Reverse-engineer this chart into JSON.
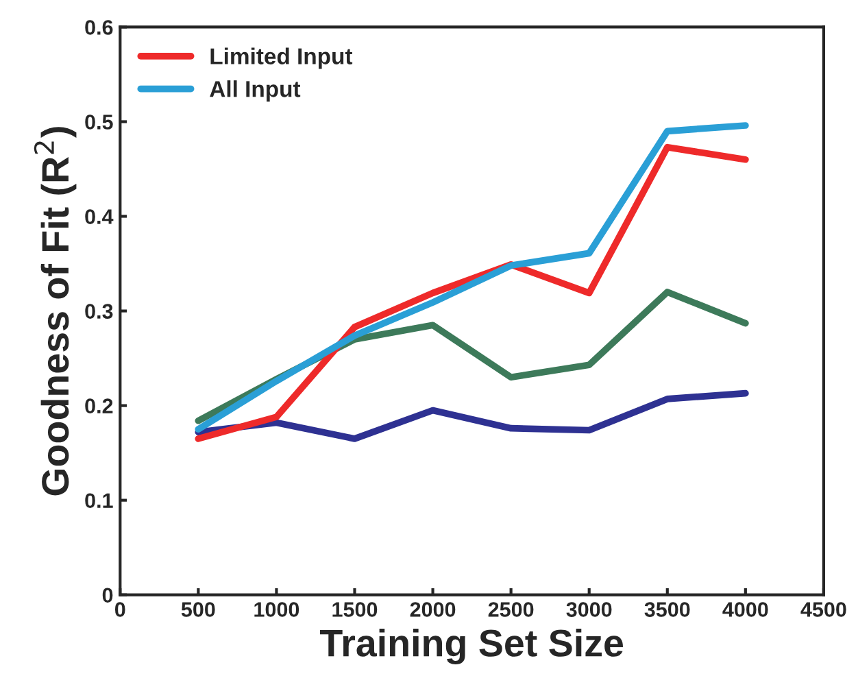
{
  "chart_data": {
    "type": "line",
    "xlabel": "Training Set Size",
    "ylabel": "Goodness of Fit (R$^{2}$)",
    "x": [
      500,
      1000,
      1500,
      2000,
      2500,
      3000,
      3500,
      4000
    ],
    "series": [
      {
        "color": "#2e3192",
        "values": [
          0.172,
          0.182,
          0.165,
          0.195,
          0.176,
          0.174,
          0.207,
          0.213
        ]
      },
      {
        "color": "#3d7a5a",
        "values": [
          0.184,
          0.228,
          0.27,
          0.285,
          0.23,
          0.243,
          0.32,
          0.287
        ]
      },
      {
        "name": "Limited Input",
        "color": "#ee2a2a",
        "values": [
          0.165,
          0.188,
          0.283,
          0.319,
          0.349,
          0.319,
          0.473,
          0.46
        ]
      },
      {
        "name": "All Input",
        "color": "#2a9fd6",
        "values": [
          0.175,
          0.226,
          0.274,
          0.309,
          0.348,
          0.361,
          0.49,
          0.496
        ]
      }
    ],
    "xlim": [
      0,
      4500
    ],
    "xticks": [
      0,
      500,
      1000,
      1500,
      2000,
      2500,
      3000,
      3500,
      4000,
      4500
    ],
    "ylim": [
      0,
      0.6
    ],
    "yticks": [
      0,
      0.1,
      0.2,
      0.3,
      0.4,
      0.5,
      0.6
    ],
    "legend": "top left",
    "grid": false,
    "marker": "none",
    "line_style": "solid"
  }
}
